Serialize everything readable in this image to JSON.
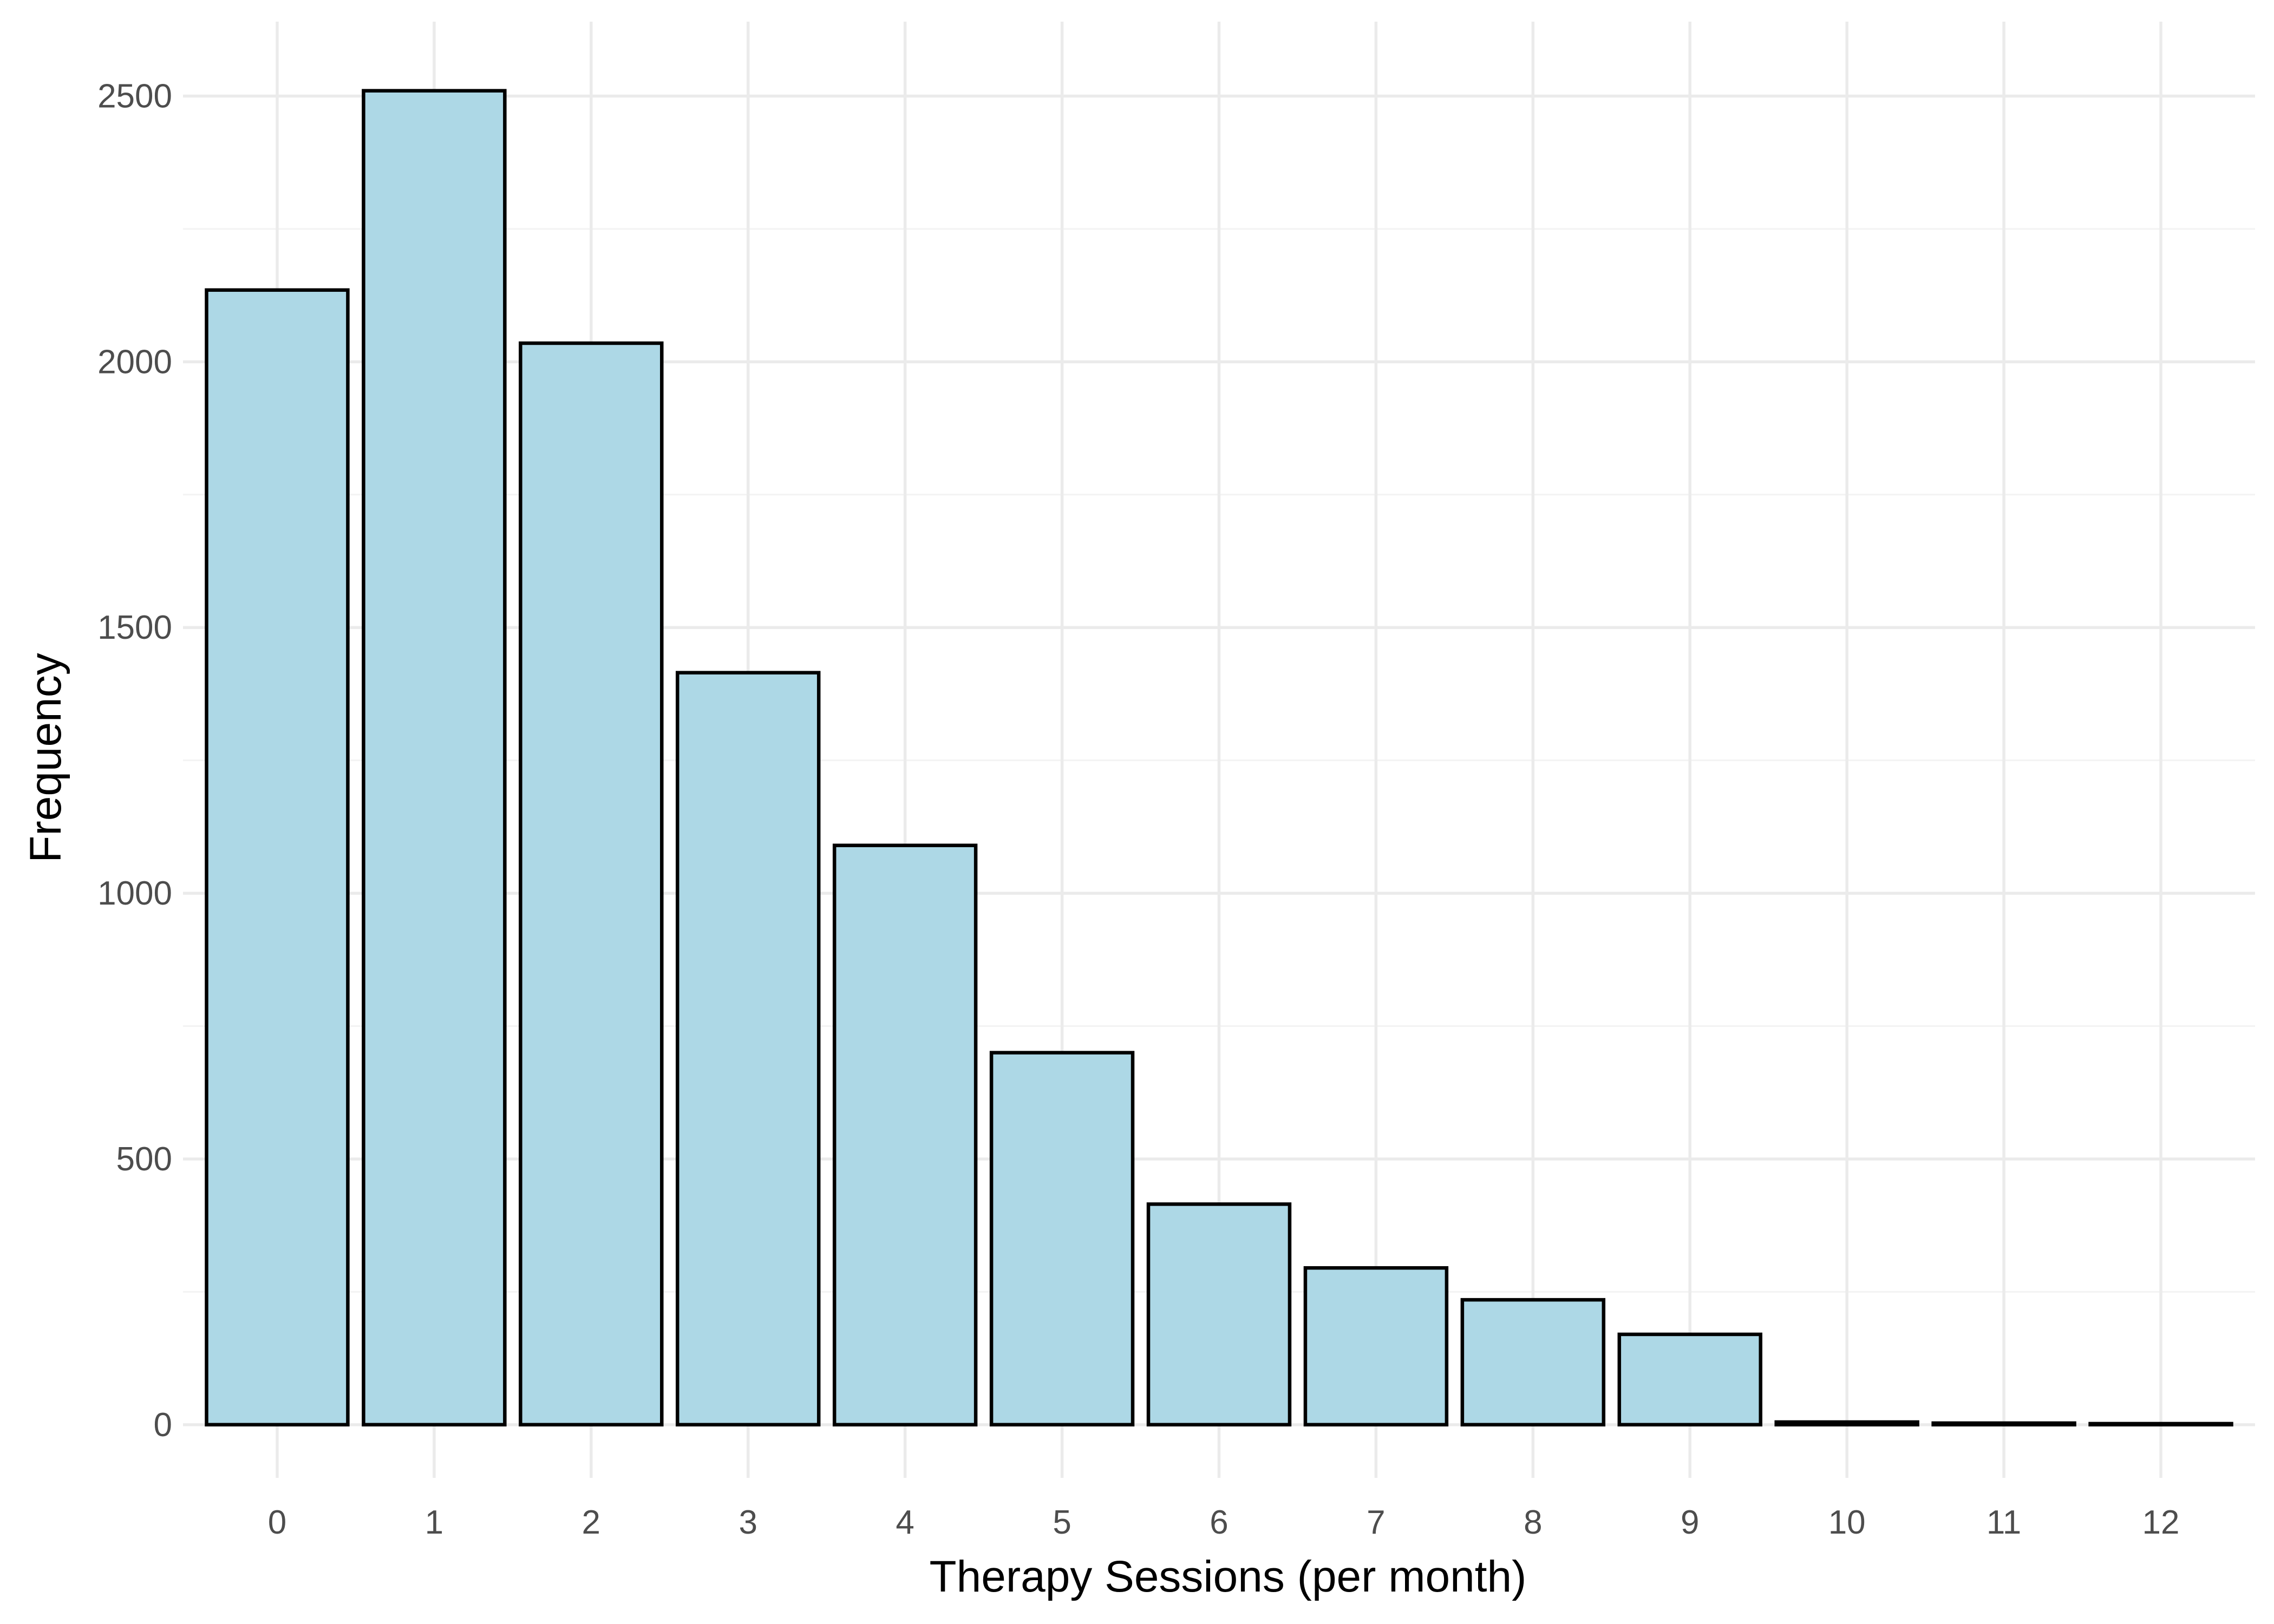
{
  "chart_data": {
    "type": "bar",
    "title": "",
    "xlabel": "Therapy Sessions (per month)",
    "ylabel": "Frequency",
    "categories": [
      "0",
      "1",
      "2",
      "3",
      "4",
      "5",
      "6",
      "7",
      "8",
      "9",
      "10",
      "11",
      "12"
    ],
    "values": [
      2135,
      2510,
      2035,
      1415,
      1090,
      700,
      415,
      295,
      235,
      170,
      5,
      3,
      2
    ],
    "ylim": [
      -100,
      2640
    ],
    "yticks": [
      0,
      500,
      1000,
      1500,
      2000,
      2500
    ],
    "ytick_labels": [
      "0",
      "500",
      "1000",
      "1500",
      "2000",
      "2500"
    ],
    "grid": true,
    "legend": "none",
    "colors": {
      "bar_fill": "#add8e6",
      "bar_outline": "#000000",
      "grid_major": "#ebebeb",
      "grid_minor": "#f3f3f3"
    }
  }
}
